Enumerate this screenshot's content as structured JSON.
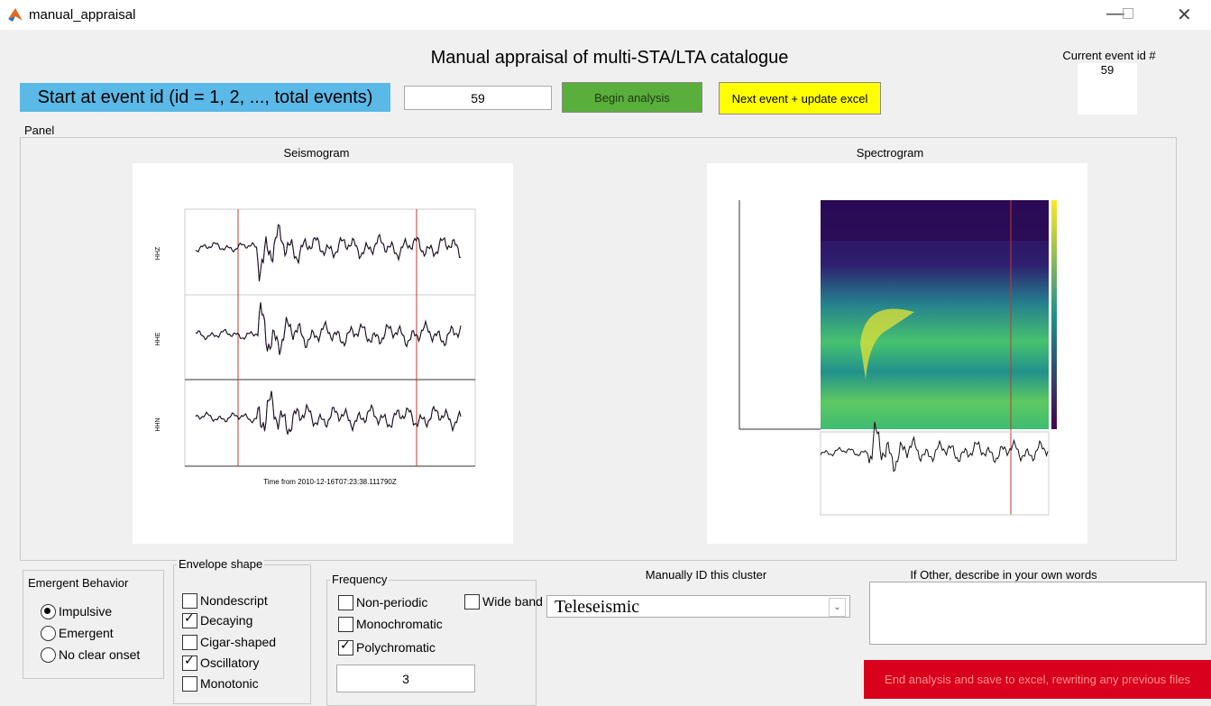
{
  "window": {
    "title": "manual_appraisal"
  },
  "header": {
    "title": "Manual appraisal of multi-STA/LTA catalogue",
    "start_label": "Start at event id (id = 1, 2, ..., total events)",
    "start_input": "59",
    "begin_button": "Begin analysis",
    "next_button": "Next event + update excel",
    "current_event_label": "Current event id #",
    "current_event_value": "59"
  },
  "panel": {
    "title": "Panel",
    "seismogram": {
      "title": "Seismogram",
      "xlabel": "Time from 2010-12-16T07:23:38.111790Z"
    },
    "spectrogram": {
      "title": "Spectrogram"
    }
  },
  "emergent": {
    "title": "Emergent Behavior",
    "options": [
      {
        "label": "Impulsive",
        "selected": true
      },
      {
        "label": "Emergent",
        "selected": false
      },
      {
        "label": "No clear onset",
        "selected": false
      }
    ]
  },
  "envelope": {
    "title": "Envelope shape",
    "options": [
      {
        "label": "Nondescript",
        "checked": false
      },
      {
        "label": "Decaying",
        "checked": true
      },
      {
        "label": "Cigar-shaped",
        "checked": false
      },
      {
        "label": "Oscillatory",
        "checked": true
      },
      {
        "label": "Monotonic",
        "checked": false
      }
    ]
  },
  "frequency": {
    "title": "Frequency",
    "options": [
      {
        "label": "Non-periodic",
        "checked": false
      },
      {
        "label": "Wide band",
        "checked": false
      },
      {
        "label": "Monochromatic",
        "checked": false
      },
      {
        "label": "Polychromatic",
        "checked": true
      }
    ],
    "input": "3"
  },
  "cluster": {
    "title": "Manually ID this cluster",
    "selected": "Teleseismic"
  },
  "other": {
    "title": "If Other, describe in your own words"
  },
  "end_button": "End analysis and save to excel, rewriting any previous files"
}
